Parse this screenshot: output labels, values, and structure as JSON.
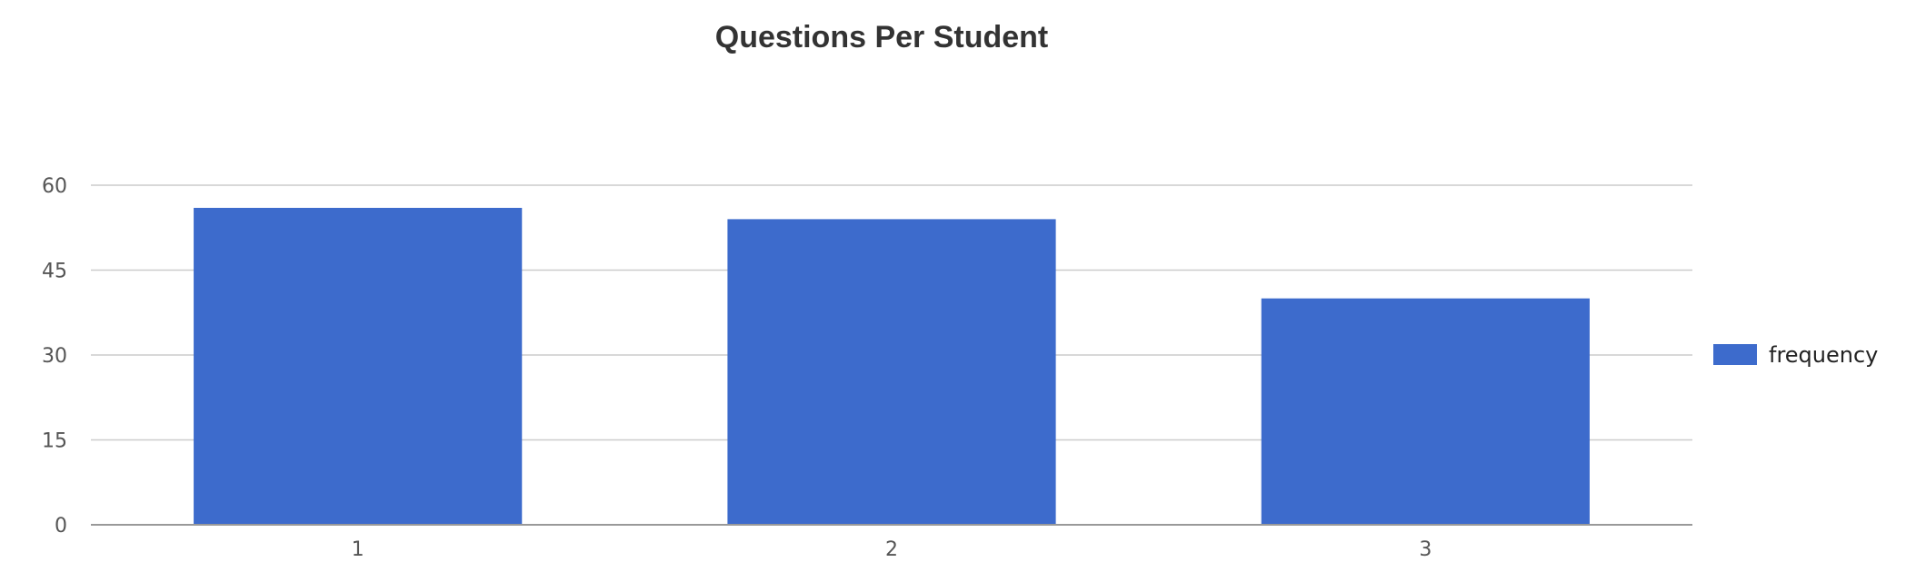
{
  "chart_data": {
    "type": "bar",
    "title": "Questions Per Student",
    "xlabel": "",
    "ylabel": "",
    "categories": [
      "1",
      "2",
      "3"
    ],
    "series": [
      {
        "name": "frequency",
        "values": [
          56,
          54,
          40
        ],
        "color": "#3d6bcc"
      }
    ],
    "ylim": [
      0,
      60
    ],
    "yticks": [
      0,
      15,
      30,
      45,
      60
    ],
    "grid": true,
    "legend_position": "right",
    "colors": {
      "bar": "#3d6bcc",
      "grid": "#cccccc",
      "axis": "#999999",
      "tick_text": "#555555",
      "title_text": "#333333"
    }
  }
}
